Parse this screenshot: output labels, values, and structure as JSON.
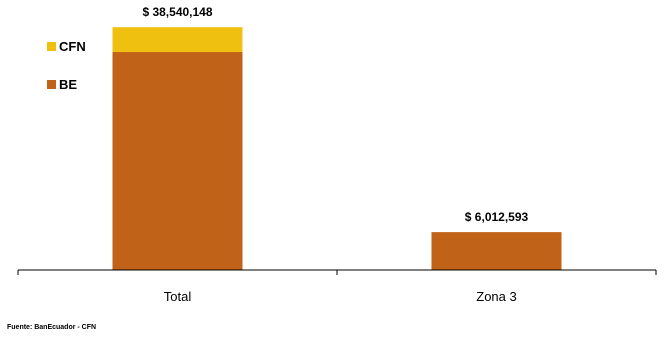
{
  "chart_data": {
    "type": "bar",
    "stacked": true,
    "categories": [
      "Total",
      "Zona 3"
    ],
    "series": [
      {
        "name": "BE",
        "values": [
          34600000,
          6012593
        ],
        "color": "#C06218"
      },
      {
        "name": "CFN",
        "values": [
          3940148,
          0
        ],
        "color": "#F0C010"
      }
    ],
    "total_labels": [
      "$ 38,540,148",
      "$ 6,012,593"
    ],
    "legend": {
      "position": "top-left",
      "order": [
        "CFN",
        "BE"
      ]
    },
    "ylim": [
      0,
      40000000
    ],
    "grid": false,
    "title": "",
    "xlabel": "",
    "ylabel": ""
  },
  "footer": {
    "source": "Fuente: BanEcuador - CFN"
  }
}
